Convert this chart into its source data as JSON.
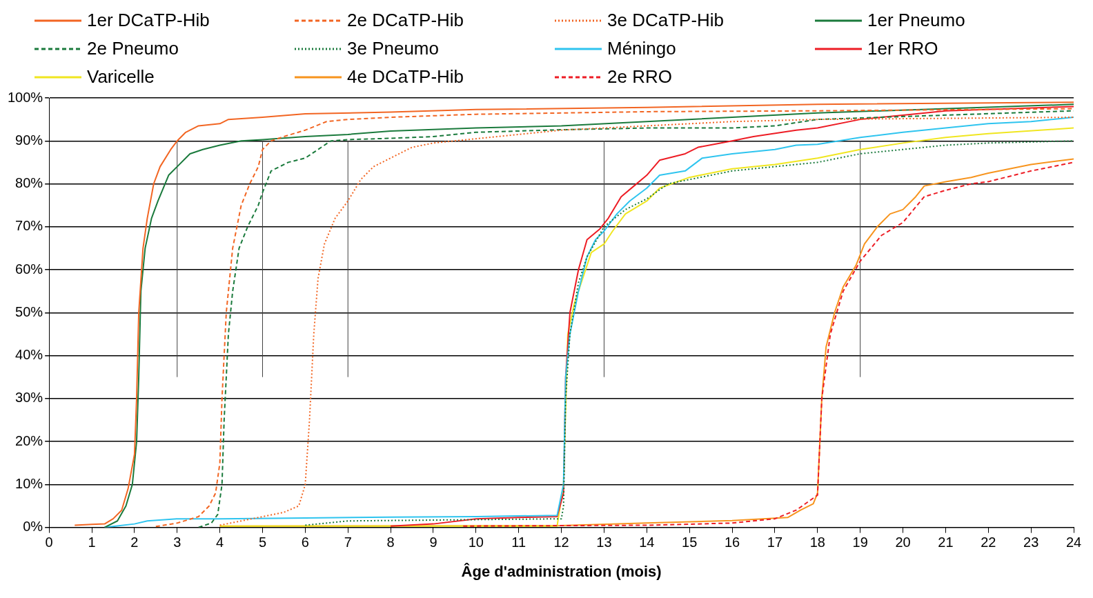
{
  "chart_data": {
    "type": "line",
    "xlabel": "Âge d'administration (mois)",
    "xlim": [
      0,
      24
    ],
    "xticks": [
      0,
      1,
      2,
      3,
      4,
      5,
      6,
      7,
      8,
      9,
      10,
      11,
      12,
      13,
      14,
      15,
      16,
      17,
      18,
      19,
      20,
      21,
      22,
      23,
      24
    ],
    "ylim": [
      0,
      100
    ],
    "yticks": [
      {
        "value": 0,
        "label": "0%"
      },
      {
        "value": 10,
        "label": "10%"
      },
      {
        "value": 20,
        "label": "20%"
      },
      {
        "value": 30,
        "label": "30%"
      },
      {
        "value": 40,
        "label": "40%"
      },
      {
        "value": 50,
        "label": "50%"
      },
      {
        "value": 60,
        "label": "60%"
      },
      {
        "value": 70,
        "label": "70%"
      },
      {
        "value": 80,
        "label": "80%"
      },
      {
        "value": 90,
        "label": "90%"
      },
      {
        "value": 100,
        "label": "100%"
      }
    ],
    "grid": "y",
    "legend": "top",
    "marker": "none",
    "series": [
      {
        "name": "1er DCaTP-Hib",
        "color": "#f26522",
        "line_style": "solid",
        "x": [
          0.6,
          1.0,
          1.3,
          1.5,
          1.7,
          1.85,
          2.0,
          2.05,
          2.1,
          2.2,
          2.3,
          2.45,
          2.6,
          2.85,
          3.0,
          3.2,
          3.5,
          4.0,
          4.2,
          5,
          6,
          8,
          10,
          14,
          18,
          24
        ],
        "values": [
          0.5,
          0.7,
          0.8,
          2,
          4,
          9,
          17,
          30,
          50,
          65,
          72,
          80,
          84,
          88,
          90,
          92,
          93.5,
          94,
          95,
          95.5,
          96.3,
          96.7,
          97.3,
          97.8,
          98.5,
          99
        ]
      },
      {
        "name": "2e DCaTP-Hib",
        "color": "#f26522",
        "line_style": "dashed",
        "x": [
          2.5,
          3,
          3.5,
          3.75,
          3.9,
          4.0,
          4.05,
          4.15,
          4.3,
          4.5,
          4.7,
          4.9,
          5.0,
          5.2,
          5.5,
          6.0,
          6.5,
          7,
          8,
          10,
          14,
          18,
          24
        ],
        "values": [
          0.2,
          1,
          2.5,
          5,
          8,
          15,
          30,
          50,
          65,
          75,
          80,
          84,
          88,
          90,
          91,
          92.5,
          94.5,
          95,
          95.5,
          96.2,
          96.8,
          97,
          97.5
        ]
      },
      {
        "name": "3e DCaTP-Hib",
        "color": "#f26522",
        "line_style": "dotted",
        "x": [
          4,
          5,
          5.5,
          5.85,
          6.0,
          6.1,
          6.2,
          6.3,
          6.45,
          6.7,
          7.0,
          7.3,
          7.6,
          8,
          8.5,
          9,
          10,
          12,
          14,
          16,
          18,
          24
        ],
        "values": [
          0.5,
          2.5,
          3.5,
          5,
          10,
          25,
          45,
          58,
          66,
          72,
          76,
          81,
          84,
          86,
          88.5,
          89.5,
          90.5,
          92.5,
          93.5,
          94.5,
          95,
          95.5
        ]
      },
      {
        "name": "1er Pneumo",
        "color": "#1a7a3c",
        "line_style": "solid",
        "x": [
          1.3,
          1.6,
          1.8,
          1.95,
          2.05,
          2.1,
          2.15,
          2.25,
          2.4,
          2.55,
          2.8,
          3.0,
          3.3,
          3.6,
          4,
          4.5,
          5,
          6,
          7,
          8,
          10,
          12,
          14,
          16,
          18,
          24
        ],
        "values": [
          0,
          1.5,
          5,
          10,
          20,
          35,
          55,
          65,
          72,
          76,
          82,
          84,
          87,
          88,
          89,
          90,
          90.3,
          91,
          91.5,
          92.3,
          93,
          93.5,
          94.5,
          95.5,
          96.5,
          98.5
        ]
      },
      {
        "name": "2e Pneumo",
        "color": "#1a7a3c",
        "line_style": "dashed",
        "x": [
          3.5,
          3.8,
          3.95,
          4.05,
          4.1,
          4.2,
          4.3,
          4.45,
          4.65,
          4.9,
          5.0,
          5.2,
          5.6,
          6.0,
          6.3,
          6.6,
          7,
          8,
          9,
          10,
          12,
          14,
          16,
          17,
          18,
          24
        ],
        "values": [
          0,
          1,
          3,
          10,
          25,
          45,
          55,
          65,
          70,
          75,
          78,
          83,
          85,
          86,
          88,
          90,
          90.3,
          90.6,
          91,
          92,
          92.6,
          93,
          93,
          93.5,
          95,
          97
        ]
      },
      {
        "name": "3e Pneumo",
        "color": "#1a7a3c",
        "line_style": "dotted",
        "x": [
          6,
          7,
          12,
          12.05,
          12.1,
          12.2,
          12.4,
          12.6,
          13.0,
          13.5,
          14,
          14.5,
          15,
          16,
          17,
          18,
          19,
          20,
          21,
          22,
          24
        ],
        "values": [
          0.5,
          1.5,
          2,
          5,
          30,
          45,
          57,
          63,
          70,
          74,
          76.5,
          80,
          81,
          83,
          84,
          85,
          87,
          88,
          89,
          89.5,
          90
        ]
      },
      {
        "name": "Méningo",
        "color": "#2ec4ef",
        "line_style": "solid",
        "x": [
          1.3,
          2.0,
          2.3,
          3,
          4,
          6,
          8,
          10,
          11.9,
          12.05,
          12.1,
          12.2,
          12.4,
          12.6,
          12.8,
          13.0,
          13.3,
          13.6,
          14,
          14.3,
          14.9,
          15.3,
          16,
          17,
          17.5,
          18,
          18.5,
          19,
          20,
          21,
          22,
          23,
          24
        ],
        "values": [
          0,
          0.8,
          1.5,
          2,
          2,
          2.2,
          2.4,
          2.5,
          2.8,
          10,
          35,
          45,
          55,
          63,
          67,
          69,
          73,
          76,
          79,
          82,
          83,
          86,
          87,
          88,
          89,
          89.2,
          90,
          90.8,
          92,
          93,
          94,
          94.5,
          95.5
        ]
      },
      {
        "name": "1er RRO",
        "color": "#ed1c24",
        "line_style": "solid",
        "x": [
          8,
          9,
          10,
          11,
          11.9,
          12.05,
          12.1,
          12.2,
          12.4,
          12.6,
          12.9,
          13.1,
          13.4,
          13.7,
          14,
          14.3,
          14.9,
          15.2,
          16,
          16.5,
          17.5,
          18,
          19,
          20,
          21,
          24
        ],
        "values": [
          0.3,
          0.8,
          2,
          2.3,
          2.5,
          8,
          35,
          50,
          60,
          67,
          69.5,
          72,
          77,
          79.5,
          82,
          85.5,
          87,
          88.5,
          90,
          91,
          92.5,
          93,
          95,
          96,
          97,
          98
        ]
      },
      {
        "name": "Varicelle",
        "color": "#f0e620",
        "line_style": "solid",
        "x": [
          4,
          11.9,
          12.05,
          12.15,
          12.3,
          12.5,
          12.7,
          13,
          13.2,
          13.5,
          14,
          14.3,
          15,
          16,
          17,
          18,
          19,
          20,
          21,
          22,
          24
        ],
        "values": [
          0.3,
          0.3,
          10,
          45,
          52,
          58,
          64,
          66,
          69,
          73,
          76,
          79,
          81.5,
          83.5,
          84.5,
          86,
          88,
          89.5,
          90.8,
          91.7,
          93
        ]
      },
      {
        "name": "4e DCaTP-Hib",
        "color": "#f7941d",
        "line_style": "solid",
        "x": [
          4,
          12,
          14,
          16,
          17.3,
          17.6,
          17.9,
          18.0,
          18.1,
          18.2,
          18.4,
          18.6,
          18.9,
          19.1,
          19.4,
          19.7,
          20,
          20.3,
          20.5,
          21,
          21.6,
          22,
          23,
          24
        ],
        "values": [
          0.3,
          0.4,
          1,
          1.6,
          2.3,
          4,
          5.5,
          8,
          30,
          42,
          50,
          56,
          61,
          66,
          70,
          73,
          74,
          77,
          79.5,
          80.5,
          81.5,
          82.5,
          84.5,
          85.8
        ]
      },
      {
        "name": "2e RRO",
        "color": "#ed1c24",
        "line_style": "dashed",
        "x": [
          9.7,
          14,
          16,
          17,
          17.5,
          18,
          18.1,
          18.3,
          18.6,
          19,
          19.5,
          20,
          20.5,
          21,
          21.6,
          22,
          23,
          24
        ],
        "values": [
          0.3,
          0.5,
          1,
          2,
          4,
          7.5,
          30,
          45,
          55,
          62,
          68,
          71,
          77,
          78.5,
          80,
          80.5,
          83,
          85
        ]
      },
      {
        "color": "#404040",
        "line_style": "solid",
        "x": [
          3,
          3
        ],
        "values": [
          35,
          90
        ]
      },
      {
        "color": "#404040",
        "line_style": "solid",
        "x": [
          5,
          5
        ],
        "values": [
          35,
          90
        ]
      },
      {
        "color": "#404040",
        "line_style": "solid",
        "x": [
          7,
          7
        ],
        "values": [
          35,
          90
        ]
      },
      {
        "color": "#404040",
        "line_style": "solid",
        "x": [
          13,
          13
        ],
        "values": [
          35,
          90
        ]
      },
      {
        "color": "#404040",
        "line_style": "solid",
        "x": [
          19,
          19
        ],
        "values": [
          35,
          90
        ]
      }
    ]
  }
}
